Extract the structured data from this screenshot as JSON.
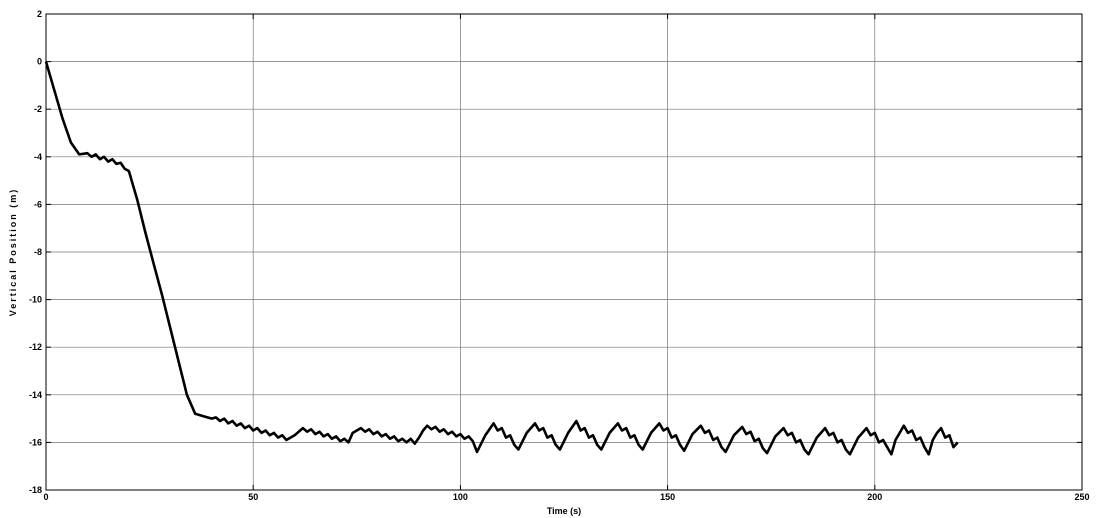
{
  "chart_data": {
    "type": "line",
    "title": "",
    "xlabel": "Time (s)",
    "ylabel": "Vertical Position (m)",
    "xlim": [
      0,
      250
    ],
    "ylim": [
      -18,
      2
    ],
    "xticks": [
      0,
      50,
      100,
      150,
      200,
      250
    ],
    "yticks": [
      2,
      0,
      -2,
      -4,
      -6,
      -8,
      -10,
      -12,
      -14,
      -16,
      -18
    ],
    "grid": true,
    "line_color": "#000000",
    "series": [
      {
        "x": [
          0,
          2,
          4,
          6,
          8,
          10,
          11,
          12,
          13,
          14,
          15,
          16,
          17,
          18,
          19,
          20,
          22,
          24,
          26,
          28,
          30,
          32,
          34,
          36,
          38,
          40,
          41,
          42,
          43,
          44,
          45,
          46,
          47,
          48,
          49,
          50,
          51,
          52,
          53,
          54,
          55,
          56,
          57,
          58,
          60,
          62,
          63,
          64,
          65,
          66,
          67,
          68,
          69,
          70,
          71,
          72,
          73,
          74,
          76,
          77,
          78,
          79,
          80,
          81,
          82,
          83,
          84,
          85,
          86,
          87,
          88,
          89,
          90,
          91,
          92,
          93,
          94,
          95,
          96,
          97,
          98,
          99,
          100,
          101,
          102,
          103,
          104,
          106,
          108,
          109,
          110,
          111,
          112,
          113,
          114,
          116,
          118,
          119,
          120,
          121,
          122,
          123,
          124,
          126,
          128,
          129,
          130,
          131,
          132,
          133,
          134,
          136,
          138,
          139,
          140,
          141,
          142,
          143,
          144,
          146,
          148,
          149,
          150,
          151,
          152,
          153,
          154,
          156,
          158,
          159,
          160,
          161,
          162,
          163,
          164,
          166,
          168,
          169,
          170,
          171,
          172,
          173,
          174,
          176,
          178,
          179,
          180,
          181,
          182,
          183,
          184,
          186,
          188,
          189,
          190,
          191,
          192,
          193,
          194,
          196,
          198,
          199,
          200,
          201,
          202,
          203,
          204,
          205,
          206,
          207,
          208,
          209,
          210,
          211,
          212,
          213,
          214,
          215,
          216,
          217,
          218,
          219,
          220
        ],
        "y": [
          0,
          -1.2,
          -2.4,
          -3.4,
          -3.9,
          -3.85,
          -4.0,
          -3.9,
          -4.1,
          -4.0,
          -4.2,
          -4.1,
          -4.3,
          -4.25,
          -4.5,
          -4.6,
          -5.8,
          -7.2,
          -8.5,
          -9.8,
          -11.2,
          -12.6,
          -14.0,
          -14.8,
          -14.9,
          -15.0,
          -14.95,
          -15.1,
          -15.0,
          -15.2,
          -15.1,
          -15.3,
          -15.2,
          -15.4,
          -15.3,
          -15.5,
          -15.4,
          -15.6,
          -15.5,
          -15.7,
          -15.6,
          -15.8,
          -15.7,
          -15.9,
          -15.7,
          -15.4,
          -15.55,
          -15.45,
          -15.65,
          -15.55,
          -15.75,
          -15.65,
          -15.85,
          -15.75,
          -15.95,
          -15.85,
          -16.0,
          -15.6,
          -15.4,
          -15.55,
          -15.45,
          -15.65,
          -15.55,
          -15.75,
          -15.65,
          -15.85,
          -15.75,
          -15.95,
          -15.85,
          -16.0,
          -15.85,
          -16.05,
          -15.8,
          -15.5,
          -15.3,
          -15.45,
          -15.35,
          -15.55,
          -15.45,
          -15.65,
          -15.55,
          -15.75,
          -15.65,
          -15.85,
          -15.75,
          -15.95,
          -16.4,
          -15.7,
          -15.2,
          -15.5,
          -15.4,
          -15.8,
          -15.7,
          -16.1,
          -16.3,
          -15.6,
          -15.2,
          -15.5,
          -15.4,
          -15.8,
          -15.7,
          -16.1,
          -16.3,
          -15.6,
          -15.1,
          -15.5,
          -15.4,
          -15.8,
          -15.7,
          -16.1,
          -16.3,
          -15.6,
          -15.2,
          -15.5,
          -15.4,
          -15.8,
          -15.7,
          -16.1,
          -16.3,
          -15.6,
          -15.2,
          -15.5,
          -15.4,
          -15.8,
          -15.7,
          -16.1,
          -16.35,
          -15.65,
          -15.3,
          -15.6,
          -15.5,
          -15.9,
          -15.8,
          -16.2,
          -16.4,
          -15.7,
          -15.35,
          -15.65,
          -15.55,
          -15.95,
          -15.85,
          -16.25,
          -16.45,
          -15.75,
          -15.4,
          -15.7,
          -15.6,
          -16.0,
          -15.9,
          -16.3,
          -16.5,
          -15.8,
          -15.4,
          -15.7,
          -15.6,
          -16.0,
          -15.9,
          -16.3,
          -16.5,
          -15.8,
          -15.4,
          -15.7,
          -15.6,
          -16.0,
          -15.9,
          -16.2,
          -16.5,
          -15.9,
          -15.6,
          -15.3,
          -15.6,
          -15.5,
          -15.9,
          -15.8,
          -16.2,
          -16.5,
          -15.9,
          -15.6,
          -15.4,
          -15.8,
          -15.7,
          -16.2,
          -16.0
        ]
      }
    ]
  }
}
